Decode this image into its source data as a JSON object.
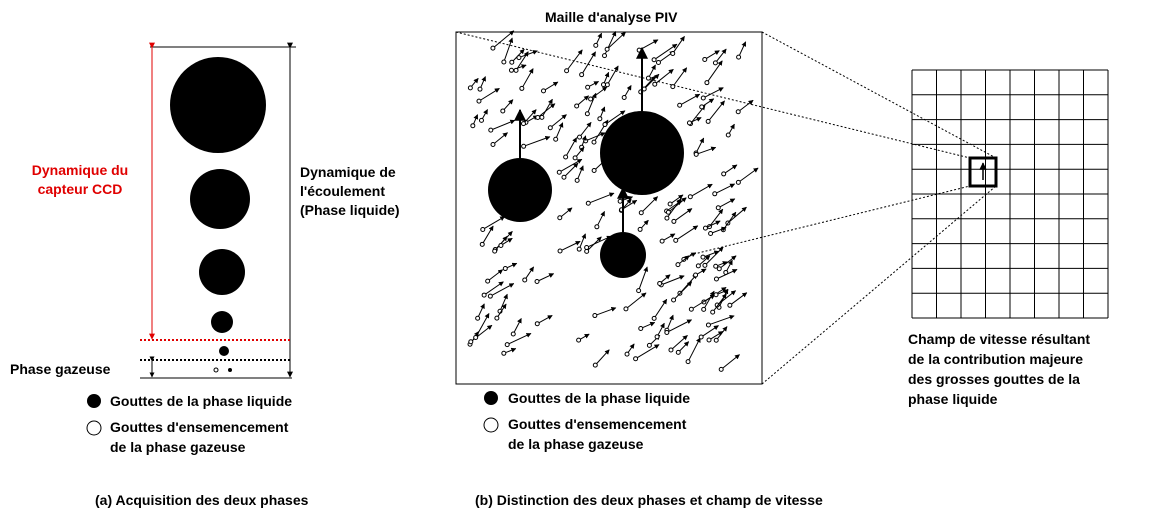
{
  "panel_a": {
    "ccd_label": [
      "Dynamique du",
      "capteur CCD"
    ],
    "flow_label": [
      "Dynamique de",
      "l'écoulement",
      "(Phase liquide)"
    ],
    "gas_label": "Phase gazeuse",
    "legend": {
      "liquid": "Gouttes de la phase liquide",
      "seeding": [
        "Gouttes d'ensemencement",
        "de la phase gazeuse"
      ]
    },
    "caption": "(a) Acquisition des deux phases"
  },
  "panel_b": {
    "title": "Maille d'analyse PIV",
    "legend": {
      "liquid": "Gouttes de la phase liquide",
      "seeding": [
        "Gouttes d'ensemencement",
        "de la phase gazeuse"
      ]
    },
    "grid_caption": [
      "Champ de vitesse résultant",
      "de la contribution majeure",
      "des grosses gouttes de la",
      "phase liquide"
    ],
    "caption": "(b) Distinction des deux phases et champ de vitesse"
  }
}
